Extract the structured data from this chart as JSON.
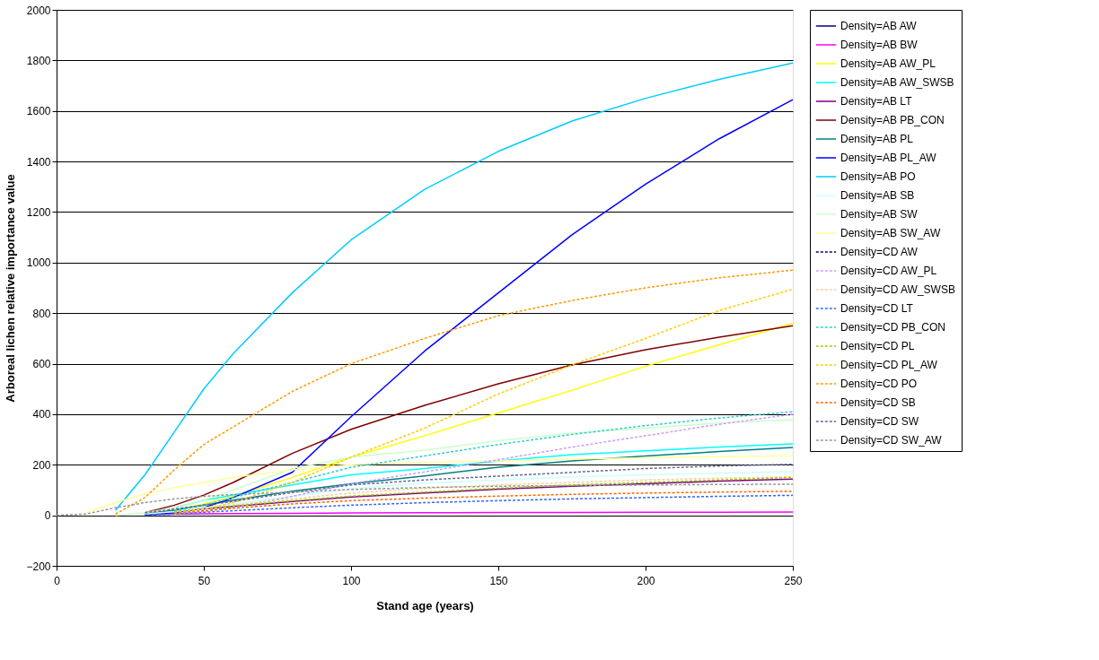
{
  "chart_data": {
    "type": "line",
    "xlabel": "Stand age (years)",
    "ylabel": "Arboreal lichen relative importance value",
    "x": [
      0,
      10,
      20,
      30,
      40,
      50,
      60,
      80,
      100,
      125,
      150,
      175,
      200,
      225,
      250
    ],
    "xlim": [
      0,
      250
    ],
    "xticks": [
      0,
      50,
      100,
      150,
      200,
      250
    ],
    "ylim": [
      -200,
      2000
    ],
    "yticks": [
      -200,
      0,
      200,
      400,
      600,
      800,
      1000,
      1200,
      1400,
      1600,
      1800,
      2000
    ],
    "grid": "y",
    "legend": "right",
    "marker": "none",
    "series": [
      {
        "name": "Density=AB AW",
        "color": "#000080",
        "line_style": "solid",
        "values": [
          null,
          null,
          null,
          null,
          null,
          null,
          null,
          null,
          null,
          null,
          null,
          null,
          null,
          null,
          null
        ]
      },
      {
        "name": "Density=AB BW",
        "color": "#ff00ff",
        "line_style": "solid",
        "values": [
          null,
          null,
          null,
          3,
          5,
          6,
          7,
          8,
          9,
          10,
          11,
          11,
          12,
          12,
          13
        ]
      },
      {
        "name": "Density=AB AW_PL",
        "color": "#ffff00",
        "line_style": "solid",
        "values": [
          null,
          null,
          null,
          5,
          20,
          45,
          75,
          150,
          230,
          315,
          405,
          495,
          590,
          675,
          760
        ]
      },
      {
        "name": "Density=AB AW_SWSB",
        "color": "#00ffff",
        "line_style": "solid",
        "values": [
          null,
          null,
          null,
          null,
          30,
          60,
          80,
          120,
          160,
          185,
          215,
          240,
          255,
          270,
          283
        ]
      },
      {
        "name": "Density=AB LT",
        "color": "#800080",
        "line_style": "solid",
        "values": [
          null,
          null,
          null,
          null,
          15,
          25,
          35,
          55,
          72,
          88,
          103,
          115,
          125,
          135,
          143
        ]
      },
      {
        "name": "Density=AB PB_CON",
        "color": "#800000",
        "line_style": "solid",
        "values": [
          null,
          null,
          null,
          10,
          40,
          80,
          130,
          245,
          340,
          435,
          520,
          595,
          655,
          705,
          750
        ]
      },
      {
        "name": "Density=AB PL",
        "color": "#008080",
        "line_style": "solid",
        "values": [
          null,
          null,
          null,
          5,
          20,
          40,
          60,
          95,
          125,
          156,
          190,
          215,
          235,
          252,
          268
        ]
      },
      {
        "name": "Density=AB PL_AW",
        "color": "#0000ff",
        "line_style": "solid",
        "values": [
          null,
          null,
          null,
          2,
          10,
          30,
          70,
          170,
          390,
          650,
          880,
          1110,
          1310,
          1490,
          1645
        ]
      },
      {
        "name": "Density=AB PO",
        "color": "#00ccff",
        "line_style": "solid",
        "values": [
          null,
          null,
          20,
          160,
          330,
          500,
          640,
          880,
          1090,
          1290,
          1440,
          1560,
          1650,
          1725,
          1790
        ]
      },
      {
        "name": "Density=AB SB",
        "color": "#ccffff",
        "line_style": "solid",
        "values": [
          null,
          null,
          null,
          5,
          15,
          30,
          45,
          75,
          105,
          127,
          140,
          152,
          160,
          167,
          173
        ]
      },
      {
        "name": "Density=AB SW",
        "color": "#ccffcc",
        "line_style": "solid",
        "values": [
          null,
          null,
          0,
          10,
          30,
          60,
          100,
          185,
          230,
          258,
          295,
          325,
          345,
          365,
          378
        ]
      },
      {
        "name": "Density=AB SW_AW",
        "color": "#ffff99",
        "line_style": "solid",
        "values": [
          null,
          10,
          50,
          85,
          110,
          130,
          150,
          180,
          200,
          210,
          215,
          222,
          228,
          232,
          236
        ]
      },
      {
        "name": "Density=CD AW",
        "color": "#000080",
        "line_style": "dashed",
        "values": [
          null,
          null,
          null,
          null,
          null,
          null,
          null,
          null,
          null,
          null,
          null,
          null,
          null,
          null,
          null
        ]
      },
      {
        "name": "Density=CD AW_PL",
        "color": "#cc99ff",
        "line_style": "dashed",
        "values": [
          null,
          null,
          null,
          null,
          5,
          15,
          30,
          75,
          125,
          172,
          220,
          270,
          315,
          360,
          400
        ]
      },
      {
        "name": "Density=CD AW_SWSB",
        "color": "#ffcc99",
        "line_style": "dashed",
        "values": [
          null,
          null,
          null,
          null,
          10,
          25,
          40,
          65,
          88,
          107,
          120,
          130,
          140,
          147,
          152
        ]
      },
      {
        "name": "Density=CD LT",
        "color": "#3366ff",
        "line_style": "dashed",
        "values": [
          null,
          null,
          null,
          1,
          5,
          12,
          18,
          30,
          40,
          50,
          58,
          65,
          70,
          75,
          79
        ]
      },
      {
        "name": "Density=CD PB_CON",
        "color": "#33cccc",
        "line_style": "dashed",
        "values": [
          null,
          null,
          null,
          null,
          20,
          40,
          70,
          130,
          190,
          235,
          280,
          320,
          355,
          385,
          410
        ]
      },
      {
        "name": "Density=CD PL",
        "color": "#99cc00",
        "line_style": "dashed",
        "values": [
          null,
          null,
          null,
          null,
          15,
          26,
          37,
          58,
          76,
          92,
          107,
          120,
          130,
          140,
          150
        ]
      },
      {
        "name": "Density=CD PL_AW",
        "color": "#ffcc00",
        "line_style": "dashed",
        "values": [
          null,
          null,
          null,
          null,
          10,
          25,
          50,
          130,
          230,
          345,
          480,
          595,
          700,
          810,
          895
        ]
      },
      {
        "name": "Density=CD PO",
        "color": "#ff9900",
        "line_style": "dashed",
        "values": [
          null,
          null,
          5,
          70,
          180,
          280,
          350,
          490,
          600,
          700,
          790,
          850,
          900,
          940,
          970
        ]
      },
      {
        "name": "Density=CD SB",
        "color": "#ff6600",
        "line_style": "dashed",
        "values": [
          null,
          null,
          null,
          null,
          8,
          18,
          28,
          45,
          58,
          68,
          76,
          83,
          88,
          92,
          95
        ]
      },
      {
        "name": "Density=CD SW",
        "color": "#666699",
        "line_style": "dashed",
        "values": [
          null,
          null,
          null,
          10,
          25,
          40,
          55,
          90,
          120,
          140,
          155,
          170,
          185,
          195,
          202
        ]
      },
      {
        "name": "Density=CD SW_AW",
        "color": "#969696",
        "line_style": "dashed",
        "values": [
          0,
          5,
          30,
          50,
          65,
          75,
          82,
          92,
          102,
          110,
          115,
          118,
          120,
          122,
          123
        ]
      }
    ]
  }
}
